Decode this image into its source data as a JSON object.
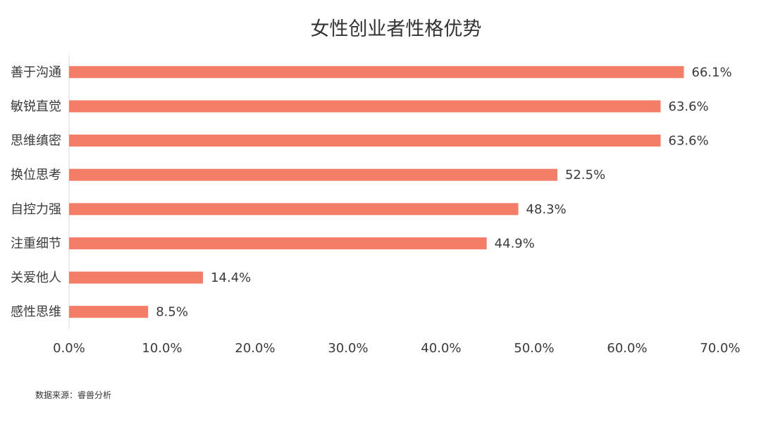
{
  "chart_data": {
    "type": "bar",
    "orientation": "horizontal",
    "title": "女性创业者性格优势",
    "categories": [
      "善于沟通",
      "敏锐直觉",
      "思维缜密",
      "换位思考",
      "自控力强",
      "注重细节",
      "关爱他人",
      "感性思维"
    ],
    "values": [
      66.1,
      63.6,
      63.6,
      52.5,
      48.3,
      44.9,
      14.4,
      8.5
    ],
    "value_labels": [
      "66.1%",
      "63.6%",
      "63.6%",
      "52.5%",
      "48.3%",
      "44.9%",
      "14.4%",
      "8.5%"
    ],
    "xlim": [
      0,
      70
    ],
    "xticks": [
      0,
      10,
      20,
      30,
      40,
      50,
      60,
      70
    ],
    "xtick_labels": [
      "0.0%",
      "10.0%",
      "20.0%",
      "30.0%",
      "40.0%",
      "50.0%",
      "60.0%",
      "70.0%"
    ],
    "grid": false,
    "legend": "none",
    "colors": {
      "bar": "#F47D68",
      "axis": "#D9D9D9"
    }
  },
  "source": "数据来源：睿兽分析"
}
